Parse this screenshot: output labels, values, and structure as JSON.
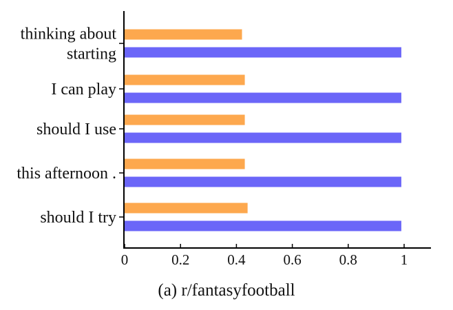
{
  "chart_data": {
    "type": "bar",
    "orientation": "horizontal",
    "categories": [
      [
        "thinking about",
        "starting"
      ],
      [
        "I can play"
      ],
      [
        "should I use"
      ],
      [
        "this afternoon ."
      ],
      [
        "should I try"
      ]
    ],
    "series": [
      {
        "color": "#FDA84E",
        "values": [
          0.42,
          0.43,
          0.43,
          0.43,
          0.44
        ]
      },
      {
        "color": "#6B66F8",
        "values": [
          0.99,
          0.99,
          0.99,
          0.99,
          0.99
        ]
      }
    ],
    "xlim": [
      0,
      1.09
    ],
    "xticks": [
      "0",
      "0.2",
      "0.4",
      "0.6",
      "0.8",
      "1"
    ],
    "xtick_values": [
      0,
      0.2,
      0.4,
      0.6,
      0.8,
      1
    ],
    "grid": false,
    "legend": "none",
    "caption": "(a) r/fantasyfootball"
  }
}
